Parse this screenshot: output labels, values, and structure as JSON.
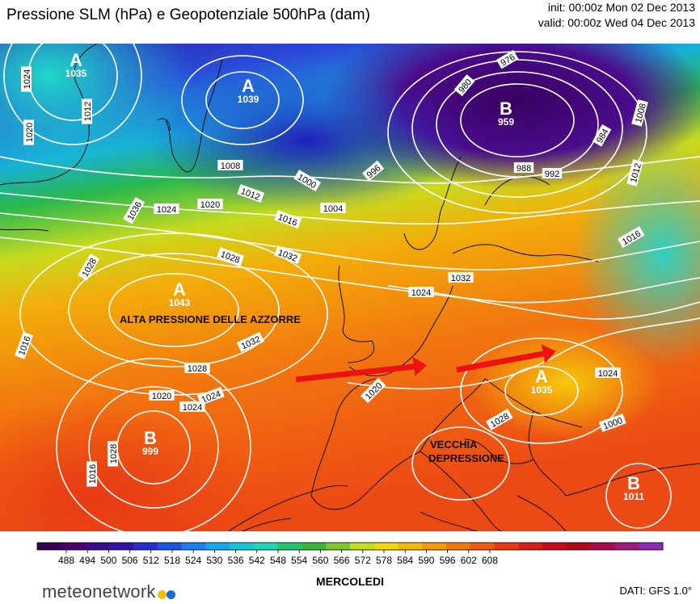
{
  "header": {
    "title": "Pressione SLM (hPa) e Geopotenziale 500hPa (dam)",
    "init": "init: 00:00z Mon 02 Dec 2013",
    "valid": "valid: 00:00z Wed 04 Dec 2013"
  },
  "map": {
    "pressure_centers": [
      {
        "letter": "A",
        "value": "1035"
      },
      {
        "letter": "A",
        "value": "1039"
      },
      {
        "letter": "B",
        "value": "959"
      },
      {
        "letter": "A",
        "value": "1043"
      },
      {
        "letter": "B",
        "value": "999"
      },
      {
        "letter": "A",
        "value": "1035"
      },
      {
        "letter": "B",
        "value": "1011"
      }
    ],
    "isobar_labels": [
      "976",
      "980",
      "984",
      "988",
      "992",
      "996",
      "1000",
      "1004",
      "1008",
      "1012",
      "1016",
      "1020",
      "1024",
      "1028",
      "1032",
      "1036",
      "1028",
      "1024",
      "1020",
      "1012",
      "1016",
      "1024",
      "1032",
      "1028",
      "1020",
      "1024",
      "1016",
      "1028",
      "1020",
      "1024",
      "1032",
      "1028",
      "1024",
      "1000",
      "1008",
      "1012",
      "1016"
    ],
    "annotations": {
      "azores": "ALTA PRESSIONE DELLE AZZORRE",
      "old_depression_line1": "VECCHIA",
      "old_depression_line2": "DEPRESSIONE"
    },
    "arrow_color": "#ee1111"
  },
  "legend": {
    "values": [
      "488",
      "494",
      "500",
      "506",
      "512",
      "518",
      "524",
      "530",
      "536",
      "542",
      "548",
      "554",
      "560",
      "566",
      "572",
      "578",
      "584",
      "590",
      "596",
      "602",
      "608"
    ],
    "colors": [
      "#3a0050",
      "#4a006e",
      "#3c0a8c",
      "#3314a8",
      "#2a2ed0",
      "#1f56e6",
      "#1d7ef0",
      "#14a6ee",
      "#18c6da",
      "#1ed8b4",
      "#22c36a",
      "#3cb43a",
      "#7cc82a",
      "#c4dc1e",
      "#f2d70e",
      "#f6b80a",
      "#f49a0c",
      "#f07a0e",
      "#ee5c12",
      "#e83a14",
      "#d81e18",
      "#c40c1a",
      "#b20818",
      "#a80a4a",
      "#9e1c7a",
      "#8a2cb4"
    ]
  },
  "footer": {
    "day_label": "MERCOLEDI",
    "data_source": "DATI:  GFS  1.0°",
    "logo_text": "meteonetwork",
    "logo_colors": [
      "#f5c000",
      "#1f6ad0"
    ]
  }
}
